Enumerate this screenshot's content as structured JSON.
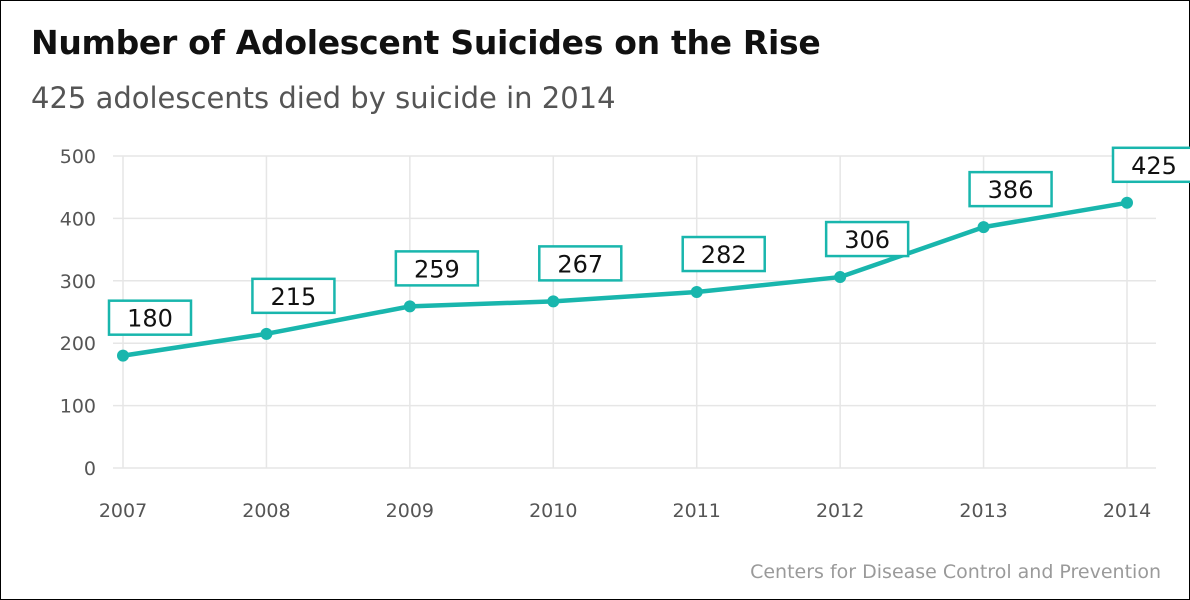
{
  "header": {
    "title": "Number of Adolescent Suicides on the Rise",
    "subtitle": "425 adolescents died by suicide in 2014"
  },
  "footer": {
    "source": "Centers for Disease Control and Prevention"
  },
  "colors": {
    "series": "#19b6ad",
    "grid": "#e6e6e6",
    "tick_text": "#555555"
  },
  "chart_data": {
    "type": "line",
    "x": [
      "2007",
      "2008",
      "2009",
      "2010",
      "2011",
      "2012",
      "2013",
      "2014"
    ],
    "series": [
      {
        "values": [
          180,
          215,
          259,
          267,
          282,
          306,
          386,
          425
        ]
      }
    ],
    "y_ticks": [
      0,
      100,
      200,
      300,
      400,
      500
    ],
    "ylim": [
      0,
      500
    ],
    "grid": true,
    "data_labels": true
  }
}
